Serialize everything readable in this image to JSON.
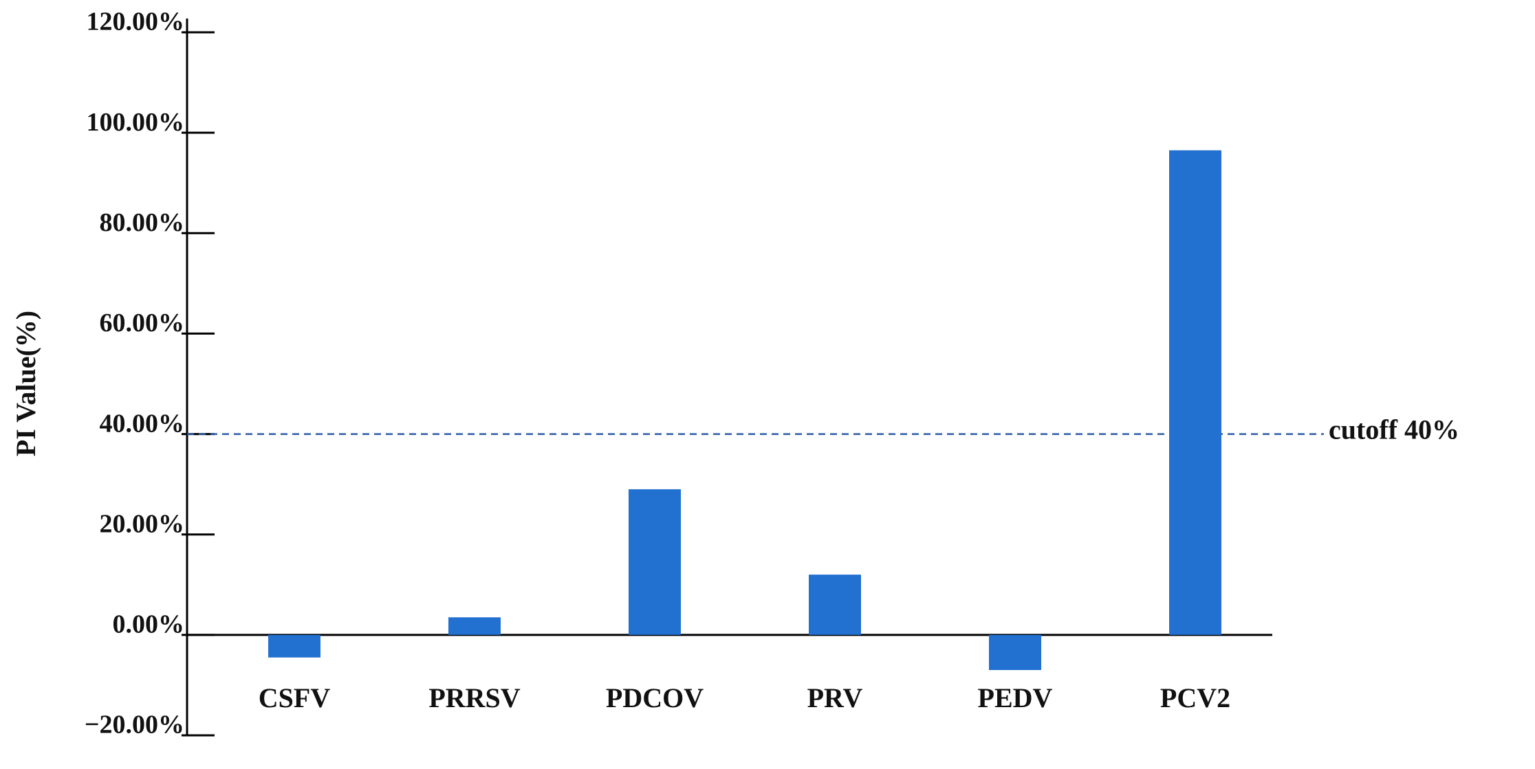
{
  "chart_data": {
    "type": "bar",
    "y_label": "PI Value(%)",
    "categories": [
      "CSFV",
      "PRRSV",
      "PDCOV",
      "PRV",
      "PEDV",
      "PCV2"
    ],
    "values": [
      -4.5,
      3.5,
      29,
      12,
      -7,
      96.5
    ],
    "color": "#2270d0",
    "ylim": [
      -20,
      120
    ],
    "yticks": [
      {
        "value": -20,
        "label": "−20.00%"
      },
      {
        "value": 0,
        "label": "0.00%"
      },
      {
        "value": 20,
        "label": "20.00%"
      },
      {
        "value": 40,
        "label": "40.00%"
      },
      {
        "value": 60,
        "label": "60.00%"
      },
      {
        "value": 80,
        "label": "80.00%"
      },
      {
        "value": 100,
        "label": "100.00%"
      },
      {
        "value": 120,
        "label": "120.00%"
      }
    ],
    "cutoff": {
      "value": 40,
      "label": "cutoff 40%",
      "color": "#2a5aa8"
    },
    "grid": false
  }
}
